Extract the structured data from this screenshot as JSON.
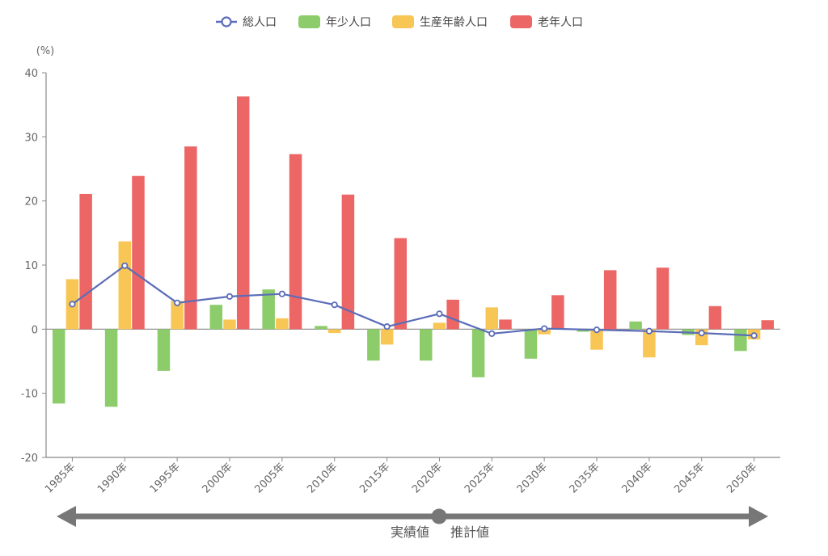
{
  "chart_data": {
    "type": "bar",
    "unit_label": "(%)",
    "categories": [
      "1985年",
      "1990年",
      "1995年",
      "2000年",
      "2005年",
      "2010年",
      "2015年",
      "2020年",
      "2025年",
      "2030年",
      "2035年",
      "2040年",
      "2045年",
      "2050年"
    ],
    "ylim": [
      -20,
      40
    ],
    "yticks": [
      -20,
      -10,
      0,
      10,
      20,
      30,
      40
    ],
    "grid": false,
    "legend_position": "top",
    "series": [
      {
        "name": "総人口",
        "kind": "line",
        "color": "#5b6db8",
        "values": [
          3.9,
          9.9,
          4.1,
          5.1,
          5.5,
          3.8,
          0.4,
          2.4,
          -0.7,
          0.1,
          -0.1,
          -0.3,
          -0.6,
          -1.0
        ]
      },
      {
        "name": "年少人口",
        "kind": "bar",
        "color": "#8ccc6b",
        "values": [
          -11.6,
          -12.1,
          -6.5,
          3.8,
          6.2,
          0.5,
          -4.9,
          -4.9,
          -7.5,
          -4.6,
          -0.4,
          1.2,
          -0.9,
          -3.4
        ]
      },
      {
        "name": "生産年齢人口",
        "kind": "bar",
        "color": "#f8c655",
        "values": [
          7.8,
          13.7,
          4.4,
          1.5,
          1.7,
          -0.6,
          -2.4,
          1.0,
          3.4,
          -0.8,
          -3.2,
          -4.4,
          -2.5,
          -1.6
        ]
      },
      {
        "name": "老年人口",
        "kind": "bar",
        "color": "#ec6666",
        "values": [
          21.1,
          23.9,
          28.5,
          36.3,
          27.3,
          21.0,
          14.2,
          4.6,
          1.5,
          5.3,
          9.2,
          9.6,
          3.6,
          1.4
        ]
      }
    ]
  },
  "timeline": {
    "left_label": "実績値",
    "right_label": "推計値",
    "color": "#777777"
  }
}
